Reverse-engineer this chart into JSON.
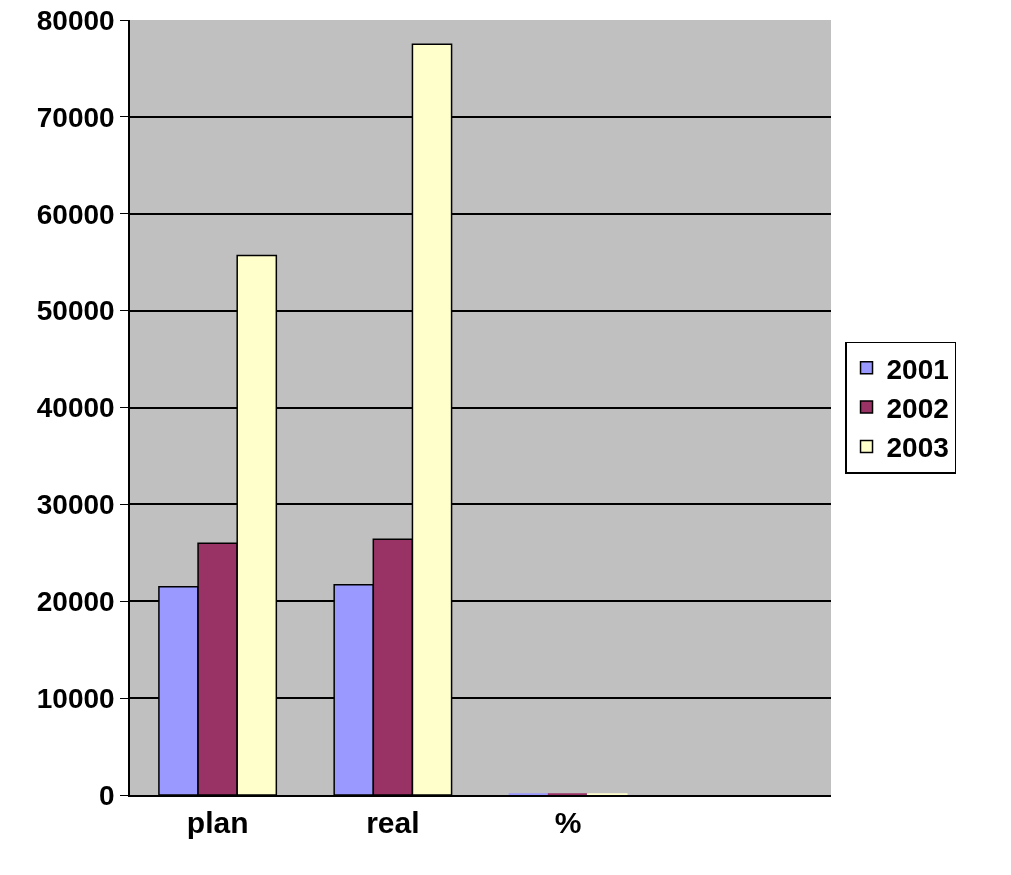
{
  "chart_data": {
    "type": "bar",
    "categories": [
      "plan",
      "real",
      "%",
      null
    ],
    "series": [
      {
        "name": "2001",
        "color": "#9999ff",
        "values": [
          21500,
          21700,
          100,
          null
        ]
      },
      {
        "name": "2002",
        "color": "#993366",
        "values": [
          26000,
          26400,
          100,
          null
        ]
      },
      {
        "name": "2003",
        "color": "#ffffcc",
        "values": [
          55700,
          77500,
          100,
          null
        ]
      }
    ],
    "ylim": [
      0,
      80000
    ],
    "yticks": [
      0,
      10000,
      20000,
      30000,
      40000,
      50000,
      60000,
      70000,
      80000
    ],
    "grid": "y",
    "legend": "right"
  }
}
